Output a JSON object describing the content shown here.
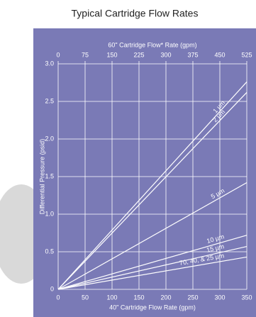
{
  "chart_data": {
    "type": "line",
    "title": "Typical Cartridge Flow Rates",
    "x_label": "40\" Cartridge Flow Rate (gpm)",
    "x2_label": "60\" Cartridge Flow* Rate (gpm)",
    "y_label": "Differential Pressure (psid)",
    "x": [
      0,
      350
    ],
    "xlim": [
      0,
      350
    ],
    "xticks": [
      0,
      50,
      100,
      150,
      200,
      250,
      300,
      350
    ],
    "x2lim": [
      0,
      525
    ],
    "x2ticks": [
      0,
      75,
      150,
      225,
      300,
      375,
      450,
      525
    ],
    "ylim": [
      0,
      3
    ],
    "yticks": [
      0,
      0.5,
      {
        "value": 1,
        "label": "1.0"
      },
      1.5,
      {
        "value": 2,
        "label": "2.0"
      },
      2.5,
      {
        "value": 3,
        "label": "3.0"
      }
    ],
    "grid": true,
    "series": [
      {
        "name": "1 µm",
        "color": "#ffffff",
        "values": [
          0,
          2.76
        ]
      },
      {
        "name": "2 µm",
        "color": "#ffffff",
        "values": [
          0,
          2.62
        ]
      },
      {
        "name": "5 µm",
        "color": "#ffffff",
        "values": [
          0,
          1.42
        ]
      },
      {
        "name": "10 µm",
        "color": "#ffffff",
        "values": [
          0,
          0.72
        ]
      },
      {
        "name": "15 µm",
        "color": "#ffffff",
        "values": [
          0,
          0.57
        ]
      },
      {
        "name": "70, 40, & 25 µm",
        "color": "#ffffff",
        "values": [
          0,
          0.43
        ]
      }
    ]
  }
}
